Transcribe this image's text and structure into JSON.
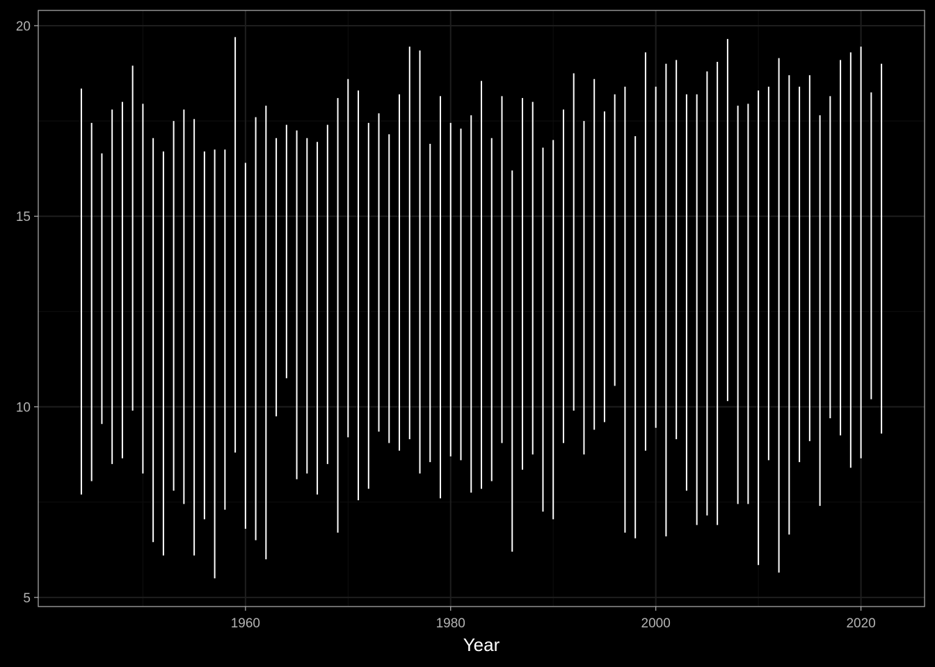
{
  "chart_data": {
    "type": "linerange",
    "title": "",
    "xlabel": "Year",
    "ylabel": "",
    "xlim": [
      1939.8,
      2026.2
    ],
    "ylim": [
      4.76,
      20.4
    ],
    "x_ticks": [
      1960,
      1980,
      2000,
      2020
    ],
    "x_tick_labels": [
      "1960",
      "1980",
      "2000",
      "2020"
    ],
    "y_ticks": [
      5,
      10,
      15,
      20
    ],
    "y_tick_labels": [
      "5",
      "10",
      "15",
      "20"
    ],
    "x_minor_ticks": [
      1950,
      1970,
      1990,
      2010
    ],
    "y_minor_ticks": [
      7.5,
      12.5,
      17.5
    ],
    "grid": true,
    "legend": "none",
    "colors": {
      "background": "#000000",
      "panel_border": "#b3b3b3",
      "grid_major": "#1e1e1e",
      "grid_minor": "#0f0f0f",
      "range": "#ffffff",
      "tick_label": "#b3b3b3"
    },
    "x": [
      1944,
      1945,
      1946,
      1947,
      1948,
      1949,
      1950,
      1951,
      1952,
      1953,
      1954,
      1955,
      1956,
      1957,
      1958,
      1959,
      1960,
      1961,
      1962,
      1963,
      1964,
      1965,
      1966,
      1967,
      1968,
      1969,
      1970,
      1971,
      1972,
      1973,
      1974,
      1975,
      1976,
      1977,
      1978,
      1979,
      1980,
      1981,
      1982,
      1983,
      1984,
      1985,
      1986,
      1987,
      1988,
      1989,
      1990,
      1991,
      1992,
      1993,
      1994,
      1995,
      1996,
      1997,
      1998,
      1999,
      2000,
      2001,
      2002,
      2003,
      2004,
      2005,
      2006,
      2007,
      2008,
      2009,
      2010,
      2011,
      2012,
      2013,
      2014,
      2015,
      2016,
      2017,
      2018,
      2019,
      2020,
      2021,
      2022
    ],
    "ymin": [
      7.7,
      8.05,
      9.55,
      8.5,
      8.65,
      9.9,
      8.25,
      6.45,
      6.1,
      7.8,
      7.45,
      6.1,
      7.05,
      5.5,
      7.3,
      8.8,
      6.8,
      6.5,
      6.0,
      9.75,
      10.75,
      8.1,
      8.25,
      7.7,
      8.5,
      6.7,
      9.2,
      7.55,
      7.85,
      9.35,
      9.05,
      8.85,
      9.15,
      8.25,
      8.55,
      7.6,
      8.7,
      8.6,
      7.75,
      7.85,
      8.05,
      9.05,
      6.2,
      8.35,
      8.75,
      7.25,
      7.05,
      9.05,
      9.9,
      8.75,
      9.4,
      9.6,
      10.55,
      6.7,
      6.55,
      8.85,
      9.45,
      6.6,
      9.15,
      7.8,
      6.9,
      7.15,
      6.9,
      10.15,
      7.45,
      7.45,
      5.85,
      8.6,
      5.65,
      6.65,
      8.55,
      9.1,
      7.4,
      9.7,
      9.25,
      8.4,
      8.65,
      10.2,
      9.3
    ],
    "ymax": [
      18.35,
      17.45,
      16.65,
      17.8,
      18.0,
      18.95,
      17.95,
      17.05,
      16.7,
      17.5,
      17.8,
      17.55,
      16.7,
      16.75,
      16.75,
      19.7,
      16.4,
      17.6,
      17.9,
      17.05,
      17.4,
      17.25,
      17.05,
      16.95,
      17.4,
      18.1,
      18.6,
      18.3,
      17.45,
      17.7,
      17.15,
      18.2,
      19.45,
      19.35,
      16.9,
      18.15,
      17.45,
      17.3,
      17.65,
      18.55,
      17.05,
      18.15,
      16.2,
      18.1,
      18.0,
      16.8,
      17.0,
      17.8,
      18.75,
      17.5,
      18.6,
      17.75,
      18.2,
      18.4,
      17.1,
      19.3,
      18.4,
      19.0,
      19.1,
      18.2,
      18.2,
      18.8,
      19.05,
      19.65,
      17.9,
      17.95,
      18.3,
      18.4,
      19.15,
      18.7,
      18.4,
      18.7,
      17.65,
      18.15,
      19.1,
      19.3,
      19.45,
      18.25,
      19.0
    ]
  }
}
